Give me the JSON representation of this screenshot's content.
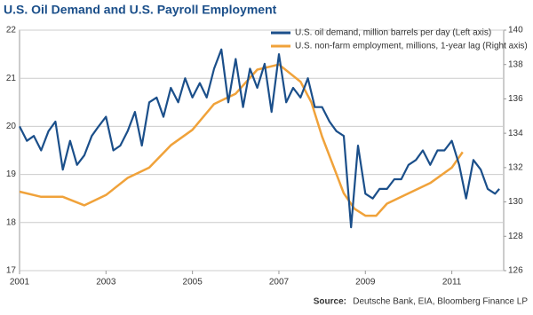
{
  "chart_data": {
    "type": "line",
    "title": "U.S. Oil Demand and U.S. Payroll Employment",
    "source_label": "Source:",
    "source": "Deutsche Bank, EIA, Bloomberg Finance LP",
    "xlim": [
      2001,
      2012.2
    ],
    "xticks": [
      2001,
      2003,
      2005,
      2007,
      2009,
      2011
    ],
    "ylim": [
      17,
      22
    ],
    "yticks": [
      17,
      18,
      19,
      20,
      21,
      22
    ],
    "y2lim": [
      126,
      140
    ],
    "y2ticks": [
      126,
      128,
      130,
      132,
      134,
      136,
      138,
      140
    ],
    "grid": true,
    "legend": "top-right",
    "series": [
      {
        "name": "U.S. oil demand, million barrels per day (Left axis)",
        "color": "#1b4f8a",
        "axis": "y",
        "x": [
          2001.0,
          2001.17,
          2001.33,
          2001.5,
          2001.67,
          2001.83,
          2002.0,
          2002.17,
          2002.33,
          2002.5,
          2002.67,
          2002.83,
          2003.0,
          2003.17,
          2003.33,
          2003.5,
          2003.67,
          2003.83,
          2004.0,
          2004.17,
          2004.33,
          2004.5,
          2004.67,
          2004.83,
          2005.0,
          2005.17,
          2005.33,
          2005.5,
          2005.67,
          2005.83,
          2006.0,
          2006.17,
          2006.33,
          2006.5,
          2006.67,
          2006.83,
          2007.0,
          2007.17,
          2007.33,
          2007.5,
          2007.67,
          2007.83,
          2008.0,
          2008.17,
          2008.33,
          2008.5,
          2008.67,
          2008.83,
          2009.0,
          2009.17,
          2009.33,
          2009.5,
          2009.67,
          2009.83,
          2010.0,
          2010.17,
          2010.33,
          2010.5,
          2010.67,
          2010.83,
          2011.0,
          2011.17,
          2011.33,
          2011.5,
          2011.67,
          2011.83,
          2012.0,
          2012.1
        ],
        "values": [
          20.0,
          19.7,
          19.8,
          19.5,
          19.9,
          20.1,
          19.1,
          19.7,
          19.2,
          19.4,
          19.8,
          20.0,
          20.2,
          19.5,
          19.6,
          19.9,
          20.3,
          19.6,
          20.5,
          20.6,
          20.2,
          20.8,
          20.5,
          21.0,
          20.6,
          20.9,
          20.6,
          21.2,
          21.6,
          20.5,
          21.4,
          20.4,
          21.2,
          20.8,
          21.3,
          20.3,
          21.5,
          20.5,
          20.8,
          20.6,
          21.0,
          20.4,
          20.4,
          20.1,
          19.9,
          19.8,
          17.9,
          19.6,
          18.6,
          18.5,
          18.7,
          18.7,
          18.9,
          18.9,
          19.2,
          19.3,
          19.5,
          19.2,
          19.5,
          19.5,
          19.7,
          19.2,
          18.5,
          19.3,
          19.1,
          18.7,
          18.6,
          18.7
        ]
      },
      {
        "name": "U.S. non-farm employment, millions, 1-year lag (Right axis)",
        "color": "#f0a23a",
        "axis": "y2",
        "x": [
          2001.0,
          2001.5,
          2002.0,
          2002.5,
          2003.0,
          2003.5,
          2004.0,
          2004.5,
          2005.0,
          2005.5,
          2006.0,
          2006.5,
          2007.0,
          2007.5,
          2007.75,
          2008.0,
          2008.5,
          2008.75,
          2009.0,
          2009.25,
          2009.5,
          2010.0,
          2010.5,
          2011.0,
          2011.25
        ],
        "values": [
          130.6,
          130.3,
          130.3,
          129.8,
          130.4,
          131.4,
          132.0,
          133.3,
          134.2,
          135.7,
          136.3,
          137.7,
          138.0,
          137.0,
          135.8,
          133.8,
          130.5,
          129.6,
          129.2,
          129.2,
          129.9,
          130.5,
          131.1,
          132.0,
          132.9
        ]
      }
    ]
  }
}
